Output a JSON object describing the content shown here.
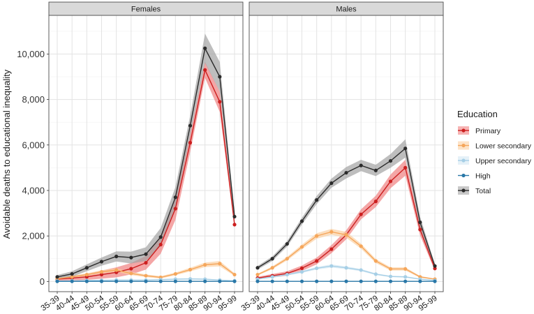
{
  "chart_data": {
    "type": "line",
    "ylabel": "Avoidable deaths to educational inequality",
    "ylim": [
      -450,
      11700
    ],
    "y_ticks": [
      0,
      2000,
      4000,
      6000,
      8000,
      10000
    ],
    "y_tick_labels": [
      "0",
      "2,000",
      "4,000",
      "6,000",
      "8,000",
      "10,000"
    ],
    "categories": [
      "35-39",
      "40-44",
      "45-49",
      "50-54",
      "55-59",
      "60-64",
      "65-69",
      "70-74",
      "75-79",
      "80-84",
      "85-89",
      "90-94",
      "95-99"
    ],
    "grid": true,
    "legend_position": "right",
    "legend_title": "Education",
    "panels": [
      {
        "title": "Females",
        "series": [
          {
            "name": "Primary",
            "values": [
              100,
              150,
              200,
              300,
              400,
              560,
              820,
              1620,
              3200,
              6100,
              9300,
              7900,
              2500
            ],
            "band": [
              70,
              100,
              130,
              180,
              220,
              250,
              300,
              400,
              500,
              400,
              350,
              450,
              150
            ]
          },
          {
            "name": "Lower secondary",
            "values": [
              120,
              200,
              300,
              420,
              500,
              350,
              250,
              180,
              330,
              520,
              730,
              780,
              300
            ],
            "band": [
              40,
              50,
              60,
              70,
              80,
              70,
              60,
              50,
              60,
              80,
              100,
              120,
              60
            ]
          },
          {
            "name": "Upper secondary",
            "values": [
              20,
              30,
              40,
              50,
              60,
              60,
              60,
              80,
              100,
              110,
              100,
              60,
              30
            ],
            "band": [
              10,
              10,
              15,
              15,
              20,
              20,
              20,
              20,
              30,
              30,
              30,
              20,
              10
            ]
          },
          {
            "name": "High",
            "values": [
              5,
              5,
              5,
              5,
              5,
              5,
              5,
              5,
              5,
              5,
              5,
              5,
              5
            ],
            "band": [
              0,
              0,
              0,
              0,
              0,
              0,
              0,
              0,
              0,
              0,
              0,
              0,
              0
            ]
          },
          {
            "name": "Total",
            "values": [
              200,
              330,
              600,
              870,
              1100,
              1050,
              1200,
              1950,
              3700,
              6850,
              10250,
              9000,
              2850
            ],
            "band": [
              80,
              120,
              150,
              180,
              220,
              260,
              300,
              400,
              450,
              450,
              650,
              650,
              200
            ]
          }
        ]
      },
      {
        "title": "Males",
        "series": [
          {
            "name": "Primary",
            "values": [
              150,
              250,
              350,
              580,
              900,
              1420,
              2050,
              2950,
              3520,
              4400,
              5000,
              2280,
              570
            ],
            "band": [
              50,
              80,
              100,
              120,
              150,
              180,
              200,
              220,
              250,
              300,
              350,
              250,
              100
            ]
          },
          {
            "name": "Lower secondary",
            "values": [
              300,
              600,
              1000,
              1520,
              2000,
              2180,
              2050,
              1550,
              900,
              550,
              550,
              200,
              100
            ],
            "band": [
              40,
              60,
              80,
              100,
              120,
              130,
              130,
              110,
              90,
              70,
              70,
              40,
              20
            ]
          },
          {
            "name": "Upper secondary",
            "values": [
              100,
              200,
              300,
              420,
              580,
              680,
              600,
              500,
              320,
              220,
              200,
              100,
              40
            ],
            "band": [
              20,
              30,
              40,
              50,
              60,
              70,
              60,
              50,
              40,
              30,
              30,
              20,
              10
            ]
          },
          {
            "name": "High",
            "values": [
              5,
              5,
              5,
              5,
              5,
              5,
              5,
              5,
              5,
              5,
              5,
              5,
              5
            ],
            "band": [
              0,
              0,
              0,
              0,
              0,
              0,
              0,
              0,
              0,
              0,
              0,
              0,
              0
            ]
          },
          {
            "name": "Total",
            "values": [
              600,
              1000,
              1650,
              2650,
              3580,
              4320,
              4780,
              5100,
              4880,
              5300,
              5850,
              2600,
              680
            ],
            "band": [
              80,
              100,
              120,
              150,
              180,
              200,
              250,
              250,
              250,
              300,
              400,
              250,
              80
            ]
          }
        ]
      }
    ]
  },
  "style": {
    "panel_bg": "#ffffff",
    "strip_bg": "#d9d9d9",
    "grid_major": "#e3e3e3",
    "grid_minor": "#f0f0f0",
    "border": "#4d4d4d",
    "series_colors": {
      "Primary": "#cc1f1f",
      "Lower secondary": "#f5a65b",
      "Upper secondary": "#a6cfe6",
      "High": "#2a78a8",
      "Total": "#2b2b2b"
    },
    "band_colors": {
      "Primary": "#f08080",
      "Lower secondary": "#fbd0a2",
      "Upper secondary": "#d4e8f3",
      "High": "#9ec5de",
      "Total": "#a3a3a3"
    }
  }
}
